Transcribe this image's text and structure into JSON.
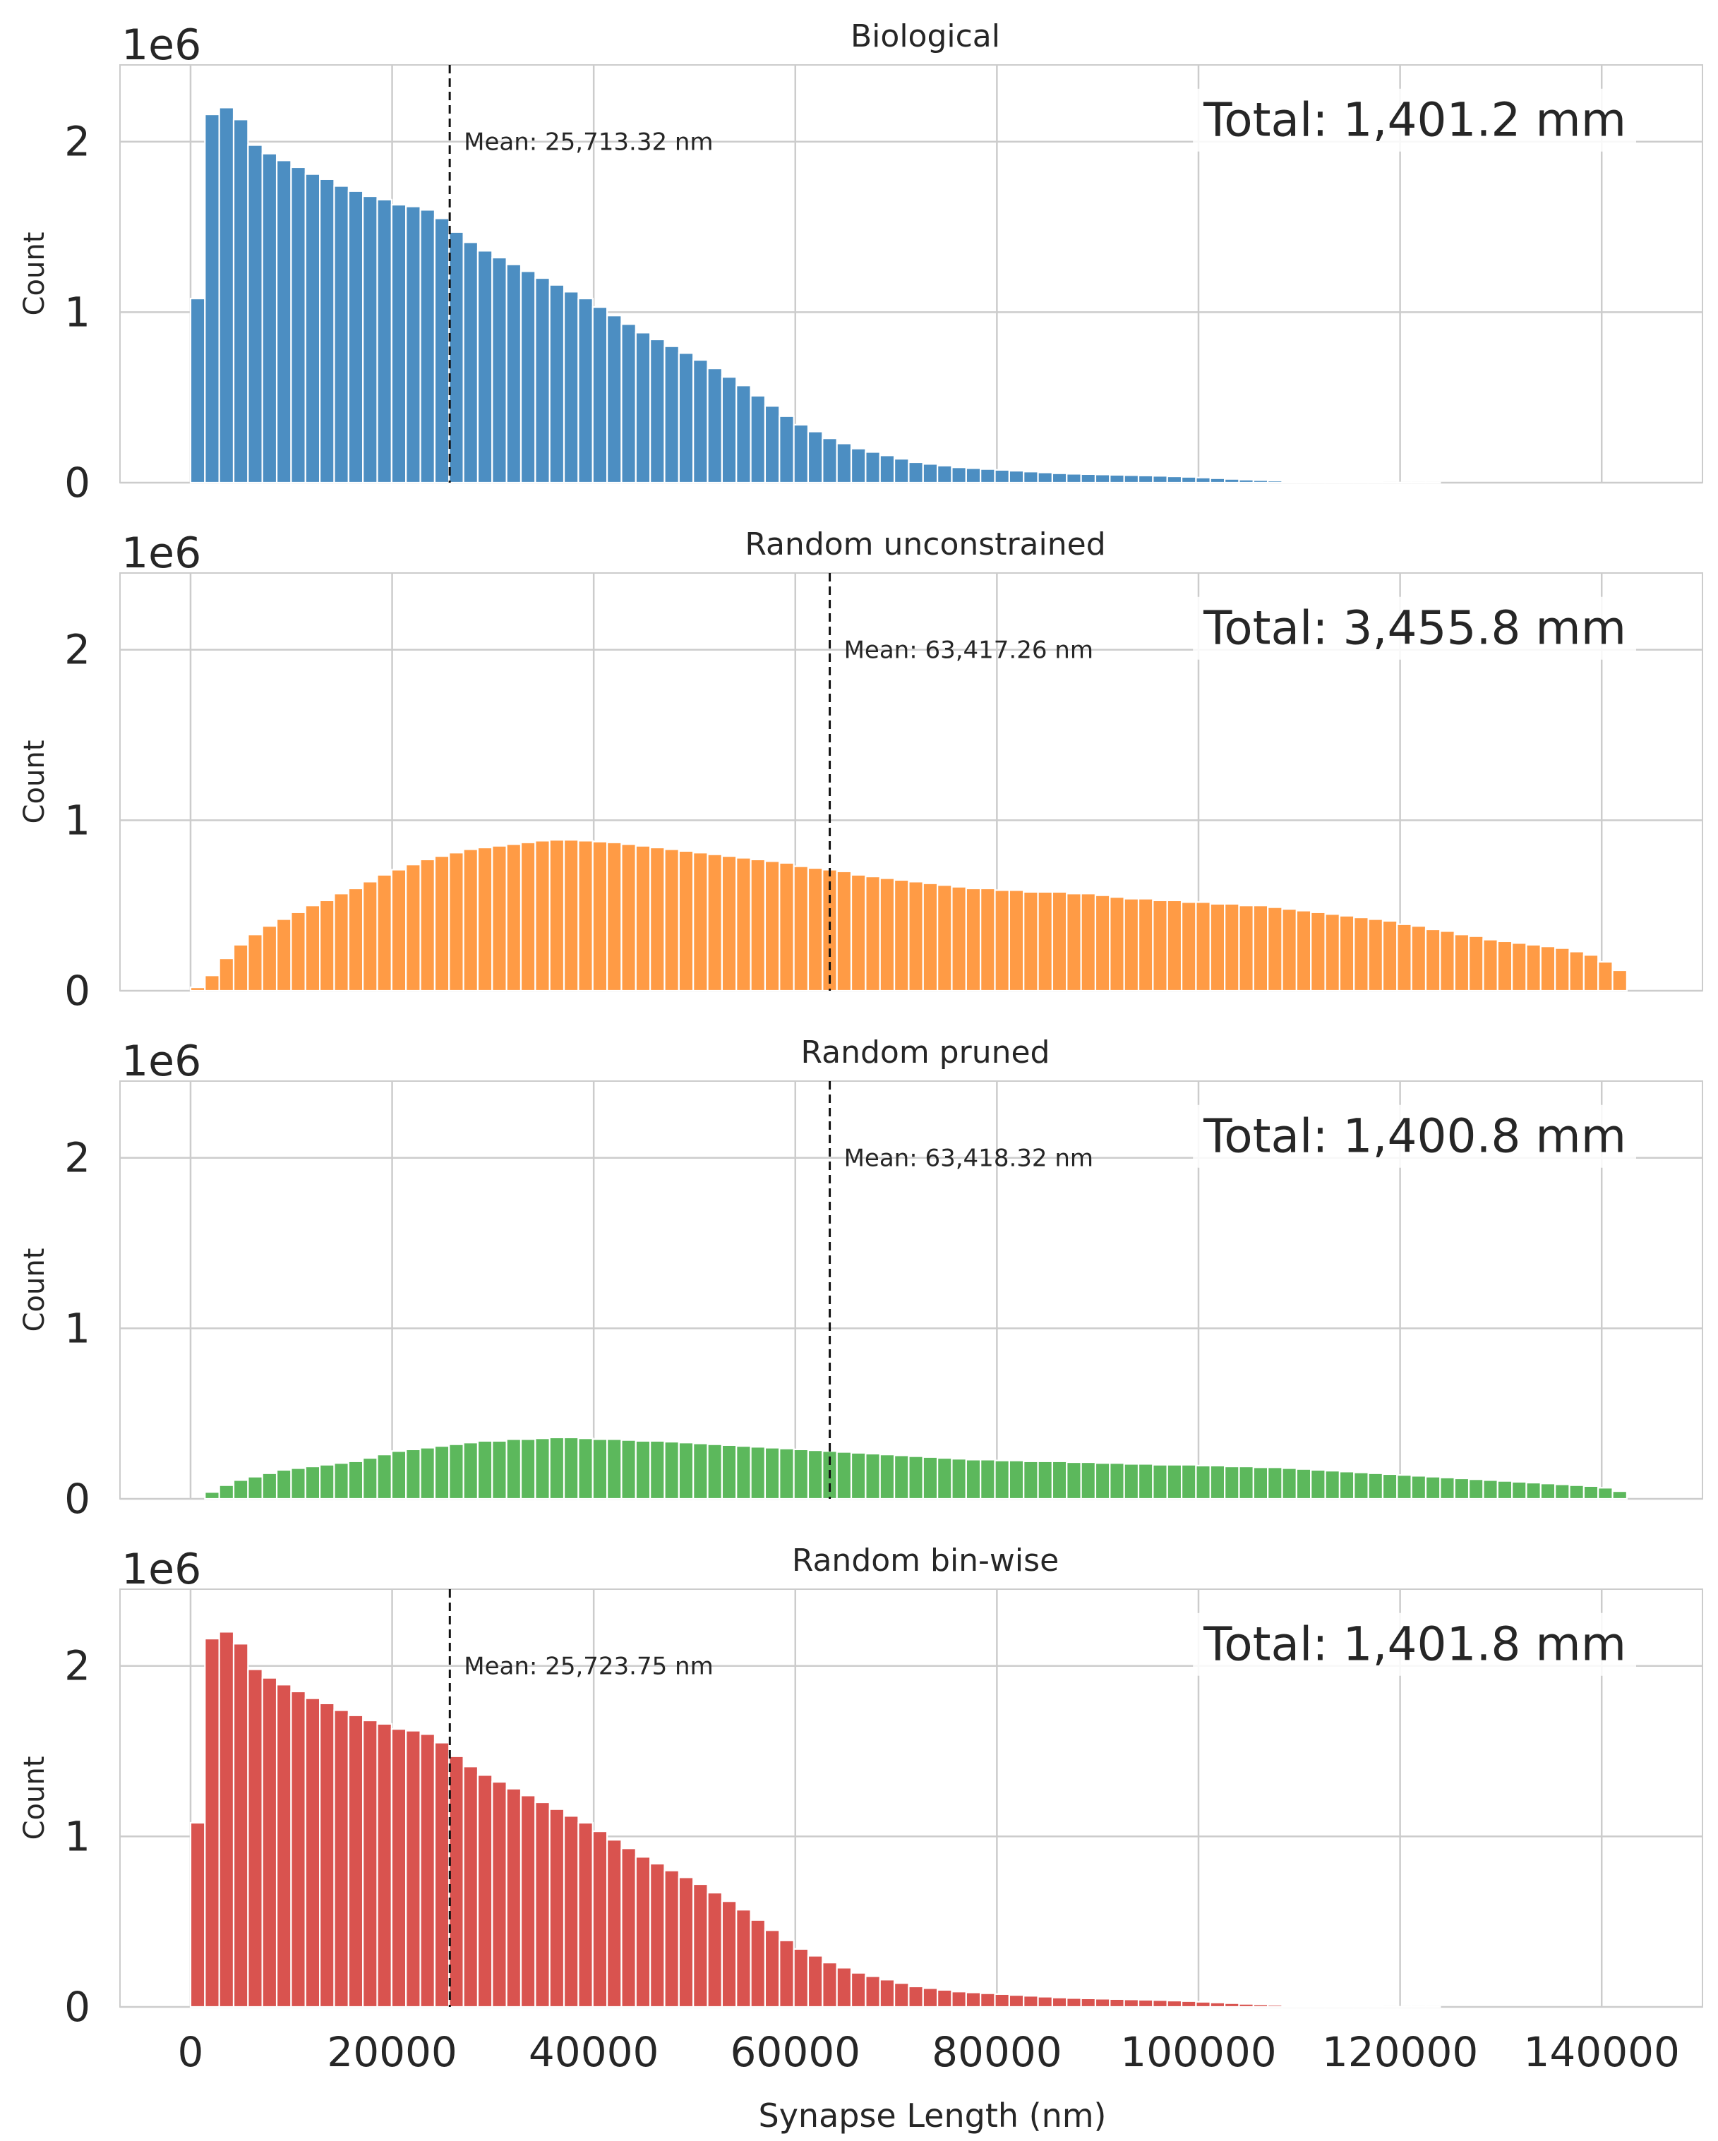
{
  "chart_data": {
    "type": "histogram-panels",
    "xlabel": "Synapse Length (nm)",
    "xlim": [
      -7000,
      150000
    ],
    "xticks": [
      0,
      20000,
      40000,
      60000,
      80000,
      100000,
      120000,
      140000
    ],
    "ylim": [
      0,
      2.45
    ],
    "yticks": [
      0,
      1,
      2
    ],
    "y_offset_label": "1e6",
    "ylabel": "Count",
    "grid": true,
    "bin_start": 0,
    "bin_width": 1425,
    "panels": [
      {
        "title": "Biological",
        "color": "#4C8EC2",
        "mean_value": 25713.32,
        "mean_label": "Mean: 25,713.32 nm",
        "total_label": "Total: 1,401.2 mm",
        "values": [
          1.08,
          2.16,
          2.2,
          2.13,
          1.98,
          1.93,
          1.89,
          1.85,
          1.81,
          1.78,
          1.74,
          1.71,
          1.68,
          1.66,
          1.63,
          1.62,
          1.6,
          1.55,
          1.47,
          1.41,
          1.36,
          1.32,
          1.28,
          1.24,
          1.2,
          1.16,
          1.12,
          1.08,
          1.03,
          0.98,
          0.93,
          0.88,
          0.84,
          0.8,
          0.76,
          0.72,
          0.67,
          0.62,
          0.57,
          0.51,
          0.45,
          0.39,
          0.34,
          0.3,
          0.26,
          0.23,
          0.2,
          0.18,
          0.16,
          0.14,
          0.12,
          0.11,
          0.1,
          0.09,
          0.085,
          0.08,
          0.075,
          0.07,
          0.065,
          0.06,
          0.055,
          0.052,
          0.05,
          0.048,
          0.046,
          0.044,
          0.042,
          0.04,
          0.037,
          0.034,
          0.03,
          0.026,
          0.022,
          0.018,
          0.015,
          0.012,
          0.009,
          0.007,
          0.005,
          0.004,
          0.003,
          0.002,
          0.002,
          0.001,
          0.001,
          0.001,
          0.001,
          0.0,
          0.0,
          0.0,
          0.0,
          0.0,
          0.0,
          0.0,
          0.0,
          0.0,
          0.0,
          0.0,
          0.0,
          0.0
        ]
      },
      {
        "title": "Random unconstrained",
        "color": "#FF9B45",
        "mean_value": 63417.26,
        "mean_label": "Mean: 63,417.26 nm",
        "total_label": "Total: 3,455.8 mm",
        "values": [
          0.02,
          0.09,
          0.19,
          0.27,
          0.33,
          0.38,
          0.42,
          0.46,
          0.5,
          0.53,
          0.57,
          0.6,
          0.64,
          0.68,
          0.71,
          0.74,
          0.77,
          0.79,
          0.81,
          0.83,
          0.84,
          0.85,
          0.86,
          0.87,
          0.88,
          0.885,
          0.885,
          0.88,
          0.875,
          0.87,
          0.86,
          0.85,
          0.84,
          0.83,
          0.82,
          0.81,
          0.8,
          0.79,
          0.78,
          0.77,
          0.76,
          0.75,
          0.73,
          0.72,
          0.71,
          0.7,
          0.68,
          0.67,
          0.66,
          0.65,
          0.64,
          0.63,
          0.62,
          0.61,
          0.6,
          0.6,
          0.59,
          0.59,
          0.58,
          0.58,
          0.58,
          0.57,
          0.57,
          0.56,
          0.55,
          0.54,
          0.54,
          0.53,
          0.53,
          0.52,
          0.52,
          0.51,
          0.51,
          0.5,
          0.5,
          0.49,
          0.48,
          0.47,
          0.46,
          0.45,
          0.44,
          0.43,
          0.42,
          0.41,
          0.39,
          0.38,
          0.36,
          0.35,
          0.33,
          0.32,
          0.3,
          0.29,
          0.28,
          0.27,
          0.26,
          0.25,
          0.23,
          0.21,
          0.17,
          0.12
        ]
      },
      {
        "title": "Random pruned",
        "color": "#5CB85C",
        "mean_value": 63418.32,
        "mean_label": "Mean: 63,418.32 nm",
        "total_label": "Total: 1,400.8 mm",
        "values": [
          0.0,
          0.04,
          0.08,
          0.11,
          0.13,
          0.15,
          0.17,
          0.18,
          0.19,
          0.2,
          0.21,
          0.22,
          0.24,
          0.26,
          0.28,
          0.29,
          0.3,
          0.31,
          0.32,
          0.33,
          0.34,
          0.34,
          0.35,
          0.35,
          0.355,
          0.36,
          0.36,
          0.355,
          0.35,
          0.35,
          0.345,
          0.34,
          0.34,
          0.335,
          0.33,
          0.325,
          0.32,
          0.315,
          0.31,
          0.305,
          0.3,
          0.295,
          0.29,
          0.285,
          0.28,
          0.275,
          0.27,
          0.265,
          0.26,
          0.255,
          0.25,
          0.245,
          0.24,
          0.235,
          0.23,
          0.23,
          0.225,
          0.225,
          0.22,
          0.22,
          0.22,
          0.215,
          0.215,
          0.21,
          0.21,
          0.205,
          0.205,
          0.2,
          0.2,
          0.2,
          0.195,
          0.195,
          0.19,
          0.19,
          0.185,
          0.185,
          0.18,
          0.175,
          0.17,
          0.165,
          0.16,
          0.155,
          0.15,
          0.145,
          0.14,
          0.135,
          0.13,
          0.125,
          0.12,
          0.115,
          0.11,
          0.105,
          0.1,
          0.095,
          0.09,
          0.085,
          0.08,
          0.075,
          0.065,
          0.045
        ]
      },
      {
        "title": "Random bin-wise",
        "color": "#D9534F",
        "mean_value": 25723.75,
        "mean_label": "Mean: 25,723.75 nm",
        "total_label": "Total: 1,401.8 mm",
        "values": [
          1.08,
          2.16,
          2.2,
          2.13,
          1.98,
          1.93,
          1.89,
          1.85,
          1.81,
          1.78,
          1.74,
          1.71,
          1.68,
          1.66,
          1.63,
          1.62,
          1.6,
          1.55,
          1.47,
          1.41,
          1.36,
          1.32,
          1.28,
          1.24,
          1.2,
          1.16,
          1.12,
          1.08,
          1.03,
          0.98,
          0.93,
          0.88,
          0.84,
          0.8,
          0.76,
          0.72,
          0.67,
          0.62,
          0.57,
          0.51,
          0.45,
          0.39,
          0.34,
          0.3,
          0.26,
          0.23,
          0.2,
          0.18,
          0.16,
          0.14,
          0.12,
          0.11,
          0.1,
          0.09,
          0.085,
          0.08,
          0.075,
          0.07,
          0.065,
          0.06,
          0.055,
          0.052,
          0.05,
          0.048,
          0.046,
          0.044,
          0.042,
          0.04,
          0.037,
          0.034,
          0.03,
          0.026,
          0.022,
          0.018,
          0.015,
          0.012,
          0.009,
          0.007,
          0.005,
          0.004,
          0.003,
          0.002,
          0.002,
          0.001,
          0.001,
          0.001,
          0.001,
          0.0,
          0.0,
          0.0,
          0.0,
          0.0,
          0.0,
          0.0,
          0.0,
          0.0,
          0.0,
          0.0,
          0.0,
          0.0
        ]
      }
    ]
  }
}
